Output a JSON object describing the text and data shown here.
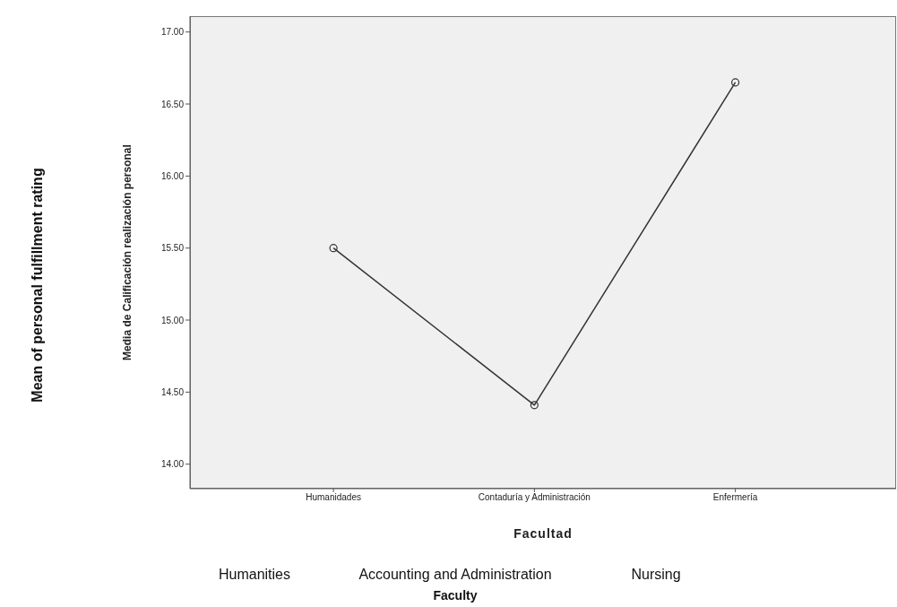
{
  "chart_data": {
    "type": "line",
    "ylabel": "Media de Calificación realización personal",
    "xlabel": "Facultad",
    "categories": [
      "Humanidades",
      "Contaduría y Administración",
      "Enfermería"
    ],
    "series": [
      {
        "color": "#333333",
        "values": [
          15.5,
          14.41,
          16.65
        ]
      }
    ],
    "ylim": [
      13.83,
      17.11
    ],
    "yticks": [
      {
        "value": 14,
        "label": "14.00"
      },
      {
        "value": 14.5,
        "label": "14.50"
      },
      {
        "value": 15,
        "label": "15.00"
      },
      {
        "value": 15.5,
        "label": "15.50"
      },
      {
        "value": 16,
        "label": "16.00"
      },
      {
        "value": 16.5,
        "label": "16.50"
      },
      {
        "value": 17,
        "label": "17.00"
      }
    ],
    "grid": false,
    "legend": false,
    "marker": "circle",
    "line_style": "solid",
    "annotations": [
      "Mean of personal fulfillment rating",
      "Humanities",
      "Accounting and Administration",
      "Nursing",
      "Faculty"
    ]
  }
}
